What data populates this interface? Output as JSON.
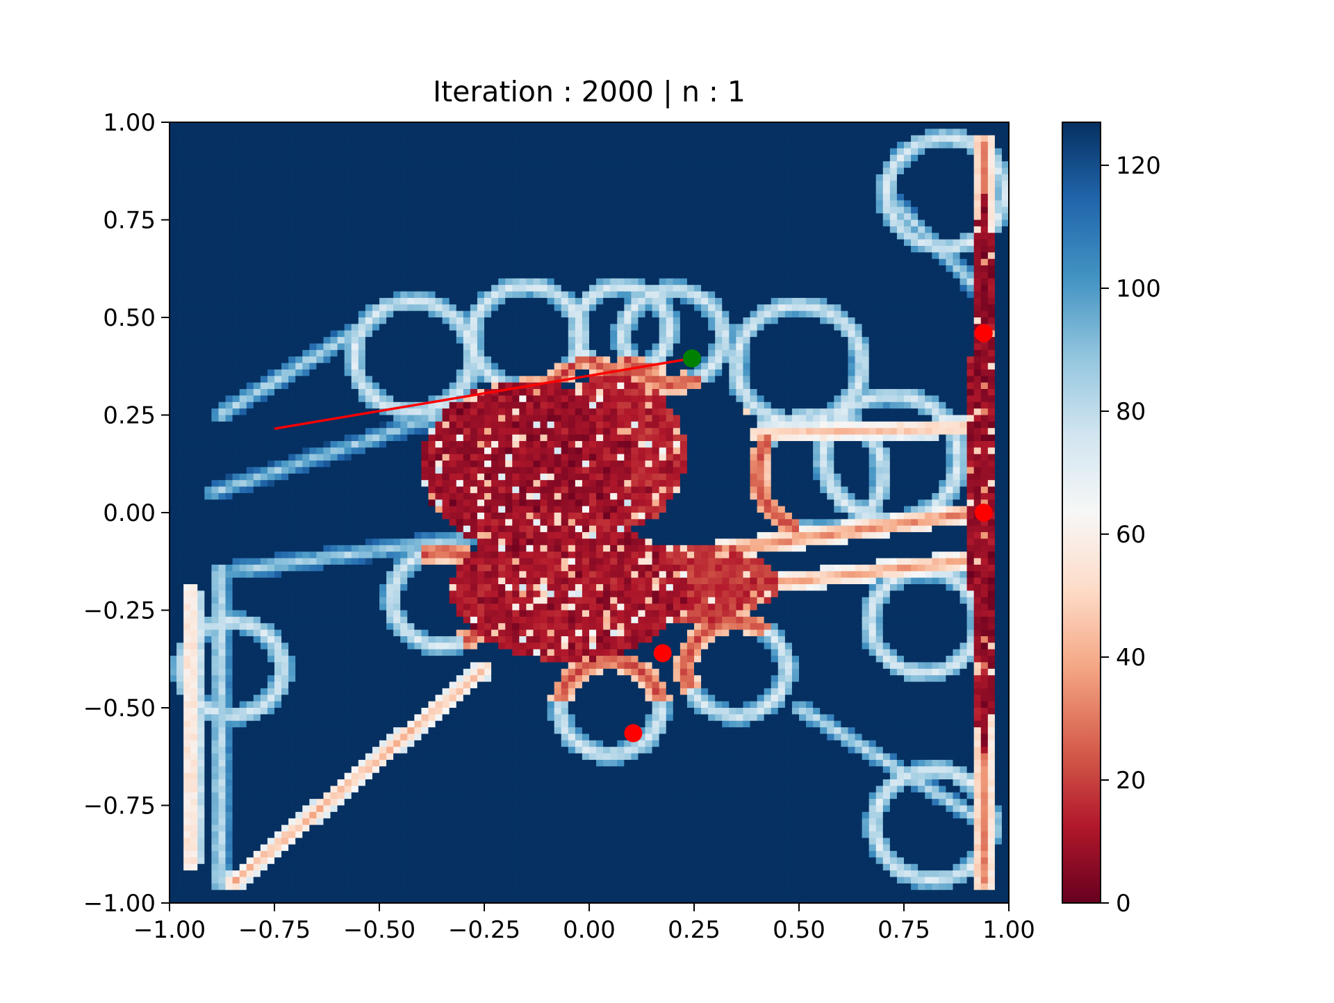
{
  "chart_data": {
    "type": "heatmap",
    "title": "Iteration : 2000 | n : 1",
    "xlabel": "",
    "ylabel": "",
    "xlim": [
      -1.0,
      1.0
    ],
    "ylim": [
      -1.0,
      1.0
    ],
    "xticks": [
      "−1.00",
      "−0.75",
      "−0.50",
      "−0.25",
      "0.00",
      "0.25",
      "0.50",
      "0.75",
      "1.00"
    ],
    "xtick_values": [
      -1.0,
      -0.75,
      -0.5,
      -0.25,
      0.0,
      0.25,
      0.5,
      0.75,
      1.0
    ],
    "yticks": [
      "1.00",
      "0.75",
      "0.50",
      "0.25",
      "0.00",
      "−0.25",
      "−0.50",
      "−0.75",
      "−1.00"
    ],
    "ytick_values": [
      1.0,
      0.75,
      0.5,
      0.25,
      0.0,
      -0.25,
      -0.5,
      -0.75,
      -1.0
    ],
    "colorbar": {
      "colormap": "RdBu",
      "range": [
        0,
        127
      ],
      "ticks": [
        "0",
        "20",
        "40",
        "60",
        "80",
        "100",
        "120"
      ],
      "tick_values": [
        0,
        20,
        40,
        60,
        80,
        100,
        120
      ]
    },
    "grid": false,
    "background_value": 127,
    "colors": {
      "high": "#053061",
      "mid": "#f7f7f7",
      "low": "#67001f",
      "red_marker": "#ff0000",
      "green_marker": "#008000"
    },
    "line": {
      "x": [
        -0.75,
        0.245
      ],
      "y": [
        0.215,
        0.395
      ],
      "color": "#ff0000"
    },
    "red_points": [
      {
        "x": 0.94,
        "y": 0.46
      },
      {
        "x": 0.94,
        "y": 0.0
      },
      {
        "x": 0.175,
        "y": -0.36
      },
      {
        "x": 0.105,
        "y": -0.565
      }
    ],
    "green_point": {
      "x": 0.245,
      "y": 0.395
    },
    "regions": {
      "rings": [
        {
          "cx": -0.42,
          "cy": 0.4,
          "r": 0.14
        },
        {
          "cx": -0.15,
          "cy": 0.45,
          "r": 0.13
        },
        {
          "cx": 0.08,
          "cy": 0.47,
          "r": 0.11
        },
        {
          "cx": 0.2,
          "cy": 0.45,
          "r": 0.12
        },
        {
          "cx": 0.5,
          "cy": 0.38,
          "r": 0.15
        },
        {
          "cx": 0.55,
          "cy": 0.1,
          "r": 0.15
        },
        {
          "cx": 0.72,
          "cy": 0.14,
          "r": 0.16
        },
        {
          "cx": 0.8,
          "cy": -0.28,
          "r": 0.13
        },
        {
          "cx": 0.05,
          "cy": -0.5,
          "r": 0.12
        },
        {
          "cx": -0.35,
          "cy": -0.22,
          "r": 0.12
        },
        {
          "cx": 0.35,
          "cy": -0.4,
          "r": 0.12
        },
        {
          "cx": 0.85,
          "cy": 0.82,
          "r": 0.14
        },
        {
          "cx": 0.82,
          "cy": -0.8,
          "r": 0.14
        },
        {
          "cx": -0.85,
          "cy": -0.4,
          "r": 0.12
        }
      ],
      "low_blobs": [
        {
          "cx": -0.15,
          "cy": 0.12,
          "rx": 0.25,
          "ry": 0.22,
          "v": 3
        },
        {
          "cx": 0.05,
          "cy": 0.15,
          "rx": 0.18,
          "ry": 0.2,
          "v": 8
        },
        {
          "cx": -0.05,
          "cy": -0.2,
          "rx": 0.28,
          "ry": 0.18,
          "v": 5
        },
        {
          "cx": 0.25,
          "cy": -0.18,
          "rx": 0.2,
          "ry": 0.1,
          "v": 12
        },
        {
          "cx": 0.94,
          "cy": 0.1,
          "rx": 0.035,
          "ry": 0.72,
          "v": 2
        }
      ],
      "lines": [
        {
          "x1": -0.88,
          "y1": 0.25,
          "x2": -0.5,
          "y2": 0.5,
          "v": 80
        },
        {
          "x1": -0.9,
          "y1": 0.05,
          "x2": -0.35,
          "y2": 0.25,
          "v": 85
        },
        {
          "x1": -0.85,
          "y1": -0.15,
          "x2": -0.2,
          "y2": -0.05,
          "v": 82
        },
        {
          "x1": -0.85,
          "y1": -0.95,
          "x2": -0.25,
          "y2": -0.4,
          "v": 40
        },
        {
          "x1": -0.95,
          "y1": -0.2,
          "x2": -0.95,
          "y2": -0.9,
          "v": 45
        },
        {
          "x1": -0.88,
          "y1": -0.15,
          "x2": -0.88,
          "y2": -0.95,
          "v": 75
        },
        {
          "x1": 0.3,
          "y1": -0.1,
          "x2": 0.92,
          "y2": 0.0,
          "v": 30
        },
        {
          "x1": 0.3,
          "y1": -0.2,
          "x2": 0.92,
          "y2": -0.12,
          "v": 35
        },
        {
          "x1": 0.4,
          "y1": 0.2,
          "x2": 0.92,
          "y2": 0.22,
          "v": 40
        },
        {
          "x1": 0.5,
          "y1": -0.5,
          "x2": 0.95,
          "y2": -0.8,
          "v": 78
        },
        {
          "x1": 0.94,
          "y1": 0.95,
          "x2": 0.94,
          "y2": -0.95,
          "v": 30
        },
        {
          "x1": 0.72,
          "y1": 0.8,
          "x2": 0.92,
          "y2": 0.58,
          "v": 80
        }
      ]
    }
  }
}
